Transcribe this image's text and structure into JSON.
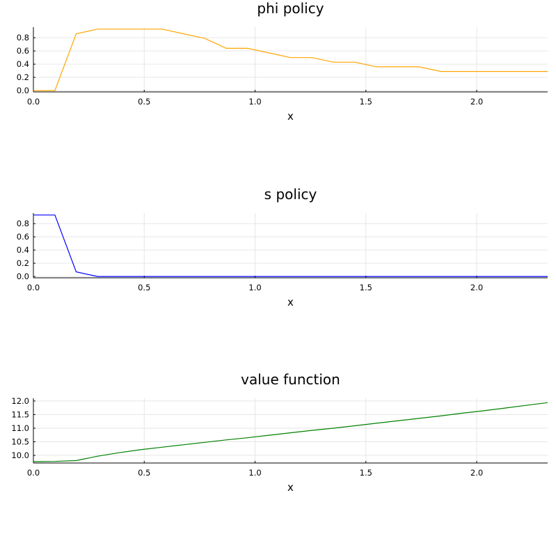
{
  "chart_data": [
    {
      "type": "line",
      "title": "phi policy",
      "xlabel": "x",
      "ylabel": "",
      "xlim": [
        0,
        2.32
      ],
      "ylim": [
        -0.02,
        0.96
      ],
      "xticks": [
        0.0,
        0.5,
        1.0,
        1.5,
        2.0
      ],
      "xtick_labels": [
        "0.0",
        "0.5",
        "1.0",
        "1.5",
        "2.0"
      ],
      "yticks": [
        0.0,
        0.2,
        0.4,
        0.6,
        0.8
      ],
      "ytick_labels": [
        "0.0",
        "0.2",
        "0.4",
        "0.6",
        "0.8"
      ],
      "grid": true,
      "color": "#ffa500",
      "series": [
        {
          "x": [
            0.0,
            0.097,
            0.193,
            0.29,
            0.387,
            0.483,
            0.58,
            0.677,
            0.773,
            0.87,
            0.967,
            1.063,
            1.16,
            1.257,
            1.353,
            1.45,
            1.547,
            1.643,
            1.74,
            1.837,
            1.933,
            2.03,
            2.127,
            2.223,
            2.32
          ],
          "y": [
            0.0,
            0.0,
            0.86,
            0.93,
            0.93,
            0.93,
            0.93,
            0.86,
            0.79,
            0.64,
            0.64,
            0.57,
            0.5,
            0.5,
            0.43,
            0.43,
            0.36,
            0.36,
            0.36,
            0.29,
            0.29,
            0.29,
            0.29,
            0.29,
            0.29
          ]
        }
      ]
    },
    {
      "type": "line",
      "title": "s policy",
      "xlabel": "x",
      "ylabel": "",
      "xlim": [
        0,
        2.32
      ],
      "ylim": [
        -0.02,
        0.96
      ],
      "xticks": [
        0.0,
        0.5,
        1.0,
        1.5,
        2.0
      ],
      "xtick_labels": [
        "0.0",
        "0.5",
        "1.0",
        "1.5",
        "2.0"
      ],
      "yticks": [
        0.0,
        0.2,
        0.4,
        0.6,
        0.8
      ],
      "ytick_labels": [
        "0.0",
        "0.2",
        "0.4",
        "0.6",
        "0.8"
      ],
      "grid": true,
      "color": "#0000ff",
      "series": [
        {
          "x": [
            0.0,
            0.097,
            0.193,
            0.29,
            0.387,
            0.483,
            0.58,
            0.677,
            0.773,
            0.87,
            0.967,
            1.063,
            1.16,
            1.257,
            1.353,
            1.45,
            1.547,
            1.643,
            1.74,
            1.837,
            1.933,
            2.03,
            2.127,
            2.223,
            2.32
          ],
          "y": [
            0.93,
            0.93,
            0.07,
            0.0,
            0.0,
            0.0,
            0.0,
            0.0,
            0.0,
            0.0,
            0.0,
            0.0,
            0.0,
            0.0,
            0.0,
            0.0,
            0.0,
            0.0,
            0.0,
            0.0,
            0.0,
            0.0,
            0.0,
            0.0,
            0.0
          ]
        }
      ]
    },
    {
      "type": "line",
      "title": "value function",
      "xlabel": "x",
      "ylabel": "",
      "xlim": [
        0,
        2.32
      ],
      "ylim": [
        9.72,
        12.1
      ],
      "xticks": [
        0.0,
        0.5,
        1.0,
        1.5,
        2.0
      ],
      "xtick_labels": [
        "0.0",
        "0.5",
        "1.0",
        "1.5",
        "2.0"
      ],
      "yticks": [
        10.0,
        10.5,
        11.0,
        11.5,
        12.0
      ],
      "ytick_labels": [
        "10.0",
        "10.5",
        "11.0",
        "11.5",
        "12.0"
      ],
      "grid": true,
      "color": "#008000",
      "series": [
        {
          "x": [
            0.0,
            0.097,
            0.193,
            0.29,
            0.387,
            0.483,
            0.58,
            0.677,
            0.773,
            0.87,
            0.967,
            1.063,
            1.16,
            1.257,
            1.353,
            1.45,
            1.547,
            1.643,
            1.74,
            1.837,
            1.933,
            2.03,
            2.127,
            2.223,
            2.32
          ],
          "y": [
            9.77,
            9.78,
            9.81,
            9.97,
            10.1,
            10.21,
            10.3,
            10.39,
            10.48,
            10.57,
            10.65,
            10.74,
            10.83,
            10.92,
            11.0,
            11.09,
            11.18,
            11.27,
            11.36,
            11.45,
            11.55,
            11.64,
            11.74,
            11.84,
            11.94
          ]
        }
      ]
    }
  ]
}
